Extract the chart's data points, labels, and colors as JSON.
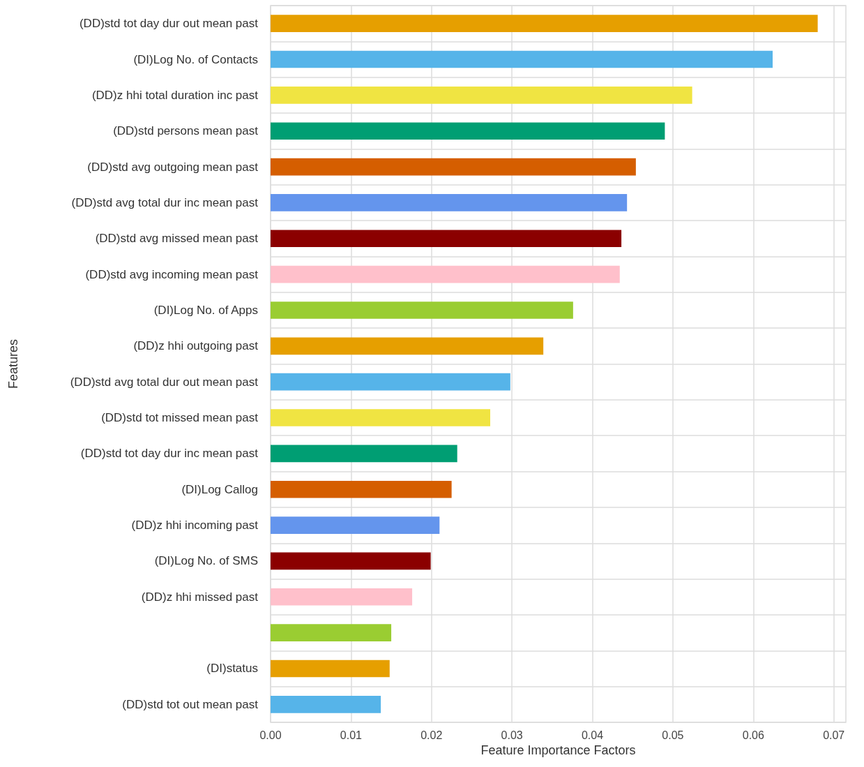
{
  "chart_data": {
    "type": "bar",
    "orientation": "horizontal",
    "xlabel": "Feature Importance Factors",
    "ylabel": "Features",
    "categories": [
      "(DD)std tot day dur out mean past",
      "(DI)Log No. of Contacts",
      "(DD)z hhi total duration inc past",
      "(DD)std persons mean past",
      "(DD)std avg outgoing mean past",
      "(DD)std avg total dur inc mean past",
      "(DD)std avg missed mean past",
      "(DD)std avg incoming mean past",
      "(DI)Log No. of Apps",
      "(DD)z hhi outgoing past",
      "(DD)std avg total dur out mean past",
      "(DD)std tot missed mean past",
      "(DD)std tot day dur inc mean past",
      "(DI)Log Callog",
      "(DD)z hhi incoming past",
      "(DI)Log No. of SMS",
      "(DD)z hhi missed past",
      null,
      "(DI)status",
      "(DD)std tot out mean past"
    ],
    "values": [
      0.068,
      0.0624,
      0.0524,
      0.049,
      0.0454,
      0.0443,
      0.0436,
      0.0434,
      0.0376,
      0.0339,
      0.0298,
      0.0273,
      0.0232,
      0.0225,
      0.021,
      0.0199,
      0.0176,
      0.015,
      0.0148,
      0.0137
    ],
    "colors": [
      "#e69f00",
      "#56b4e9",
      "#f0e442",
      "#009e73",
      "#d55e00",
      "#6495ed",
      "#8b0000",
      "#ffc0cb",
      "#9acd32",
      "#e69f00",
      "#56b4e9",
      "#f0e442",
      "#009e73",
      "#d55e00",
      "#6495ed",
      "#8b0000",
      "#ffc0cb",
      "#9acd32",
      "#e69f00",
      "#56b4e9"
    ],
    "xlim": [
      0,
      0.0715
    ],
    "xticks": [
      {
        "value": 0,
        "label": "0.00"
      },
      {
        "value": 0.01,
        "label": "0.01"
      },
      {
        "value": 0.02,
        "label": "0.02"
      },
      {
        "value": 0.03,
        "label": "0.03"
      },
      {
        "value": 0.04,
        "label": "0.04"
      },
      {
        "value": 0.05,
        "label": "0.05"
      },
      {
        "value": 0.06,
        "label": "0.06"
      },
      {
        "value": 0.07,
        "label": "0.07"
      }
    ],
    "grid": true
  }
}
